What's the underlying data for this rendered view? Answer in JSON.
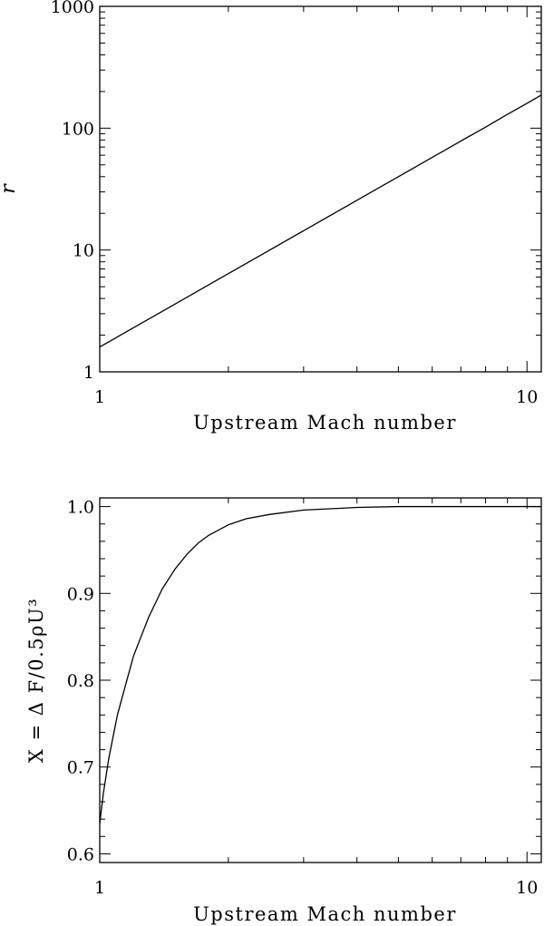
{
  "chart_data": [
    {
      "type": "line",
      "title": "",
      "xlabel": "Upstream Mach number",
      "ylabel": "r",
      "x_scale": "log",
      "y_scale": "log",
      "xlim": [
        1,
        10.8
      ],
      "ylim": [
        1,
        1000
      ],
      "x_ticks": [
        {
          "value": 1,
          "label": "1"
        },
        {
          "value": 10,
          "label": "10"
        }
      ],
      "y_ticks": [
        {
          "value": 1,
          "label": "1"
        },
        {
          "value": 10,
          "label": "10"
        },
        {
          "value": 100,
          "label": "100"
        },
        {
          "value": 1000,
          "label": "1000"
        }
      ],
      "grid": false,
      "series": [
        {
          "x": [
            1.0,
            1.5,
            2.0,
            3.0,
            4.0,
            5.0,
            6.0,
            7.0,
            8.0,
            9.0,
            10.0,
            10.8
          ],
          "values": [
            1.6,
            3.6,
            6.4,
            14.4,
            25.6,
            40,
            57.6,
            78.4,
            102,
            130,
            160,
            187
          ]
        }
      ]
    },
    {
      "type": "line",
      "title": "",
      "xlabel": "Upstream Mach number",
      "ylabel": "X =  Δ F/0.5ρU³",
      "x_scale": "log",
      "y_scale": "linear",
      "xlim": [
        1,
        10.8
      ],
      "ylim": [
        0.59,
        1.01
      ],
      "x_ticks": [
        {
          "value": 1,
          "label": "1"
        },
        {
          "value": 10,
          "label": "10"
        }
      ],
      "y_ticks": [
        {
          "value": 0.6,
          "label": "0.6"
        },
        {
          "value": 0.7,
          "label": "0.7"
        },
        {
          "value": 0.8,
          "label": "0.8"
        },
        {
          "value": 0.9,
          "label": "0.9"
        },
        {
          "value": 1.0,
          "label": "1.0"
        }
      ],
      "grid": false,
      "series": [
        {
          "x": [
            1.0,
            1.02,
            1.05,
            1.1,
            1.15,
            1.2,
            1.3,
            1.4,
            1.5,
            1.6,
            1.7,
            1.8,
            2.0,
            2.2,
            2.5,
            3.0,
            4.0,
            5.0,
            6.0,
            8.0,
            10.0,
            10.8
          ],
          "values": [
            0.635,
            0.67,
            0.71,
            0.76,
            0.795,
            0.828,
            0.872,
            0.905,
            0.928,
            0.945,
            0.958,
            0.967,
            0.979,
            0.986,
            0.991,
            0.996,
            0.999,
            1.0,
            1.0,
            1.0,
            1.0,
            1.0
          ]
        }
      ]
    }
  ]
}
